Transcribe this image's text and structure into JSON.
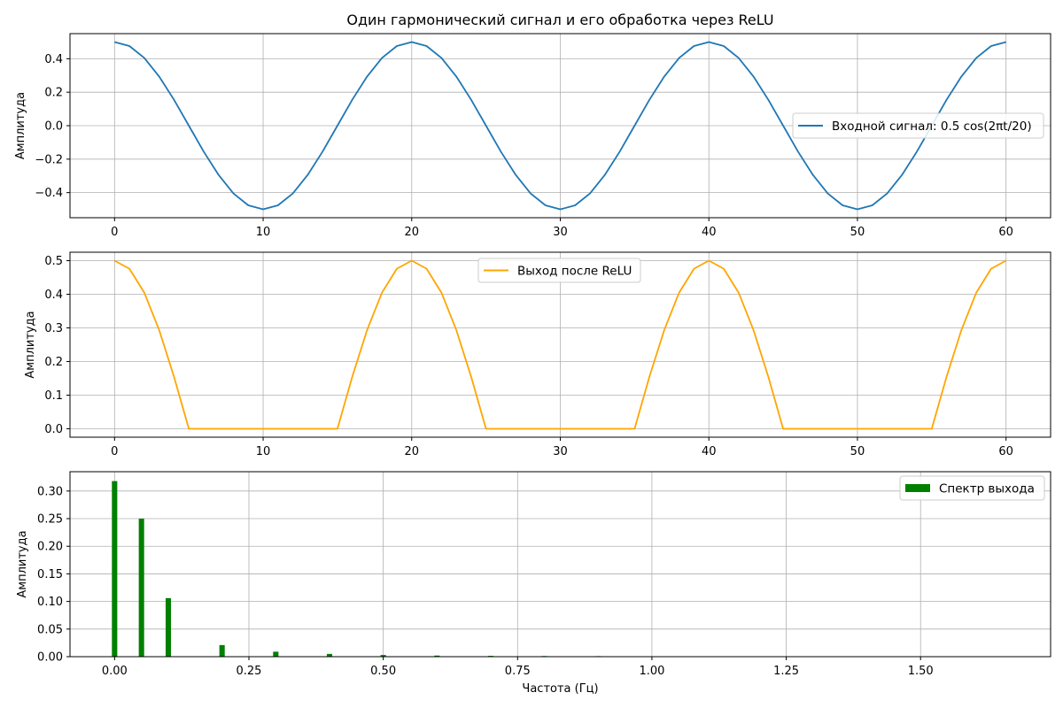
{
  "chart_data": [
    {
      "type": "line",
      "title": "Один гармонический сигнал и его обработка через ReLU",
      "xlabel": "",
      "ylabel": "Амплитуда",
      "xlim": [
        -3,
        63
      ],
      "ylim": [
        -0.55,
        0.55
      ],
      "xticks": [
        0,
        10,
        20,
        30,
        40,
        50,
        60
      ],
      "xtick_labels": [
        "0",
        "10",
        "20",
        "30",
        "40",
        "50",
        "60"
      ],
      "yticks": [
        -0.4,
        -0.2,
        0.0,
        0.2,
        0.4
      ],
      "ytick_labels": [
        "−0.4",
        "−0.2",
        "0.0",
        "0.2",
        "0.4"
      ],
      "grid": true,
      "legend_position": "center-right",
      "series": [
        {
          "name": "Входной сигнал: 0.5 cos(2πt/20)",
          "color": "#1f77b4",
          "x": [
            0,
            1,
            2,
            3,
            4,
            5,
            6,
            7,
            8,
            9,
            10,
            11,
            12,
            13,
            14,
            15,
            16,
            17,
            18,
            19,
            20,
            21,
            22,
            23,
            24,
            25,
            26,
            27,
            28,
            29,
            30,
            31,
            32,
            33,
            34,
            35,
            36,
            37,
            38,
            39,
            40,
            41,
            42,
            43,
            44,
            45,
            46,
            47,
            48,
            49,
            50,
            51,
            52,
            53,
            54,
            55,
            56,
            57,
            58,
            59,
            60
          ],
          "y": [
            0.5,
            0.476,
            0.405,
            0.294,
            0.155,
            0.0,
            -0.155,
            -0.294,
            -0.405,
            -0.476,
            -0.5,
            -0.476,
            -0.405,
            -0.294,
            -0.155,
            0.0,
            0.155,
            0.294,
            0.405,
            0.476,
            0.5,
            0.476,
            0.405,
            0.294,
            0.155,
            0.0,
            -0.155,
            -0.294,
            -0.405,
            -0.476,
            -0.5,
            -0.476,
            -0.405,
            -0.294,
            -0.155,
            0.0,
            0.155,
            0.294,
            0.405,
            0.476,
            0.5,
            0.476,
            0.405,
            0.294,
            0.155,
            0.0,
            -0.155,
            -0.294,
            -0.405,
            -0.476,
            -0.5,
            -0.476,
            -0.405,
            -0.294,
            -0.155,
            0.0,
            0.155,
            0.294,
            0.405,
            0.476,
            0.5
          ]
        }
      ]
    },
    {
      "type": "line",
      "title": "",
      "xlabel": "",
      "ylabel": "Амплитуда",
      "xlim": [
        -3,
        63
      ],
      "ylim": [
        -0.025,
        0.525
      ],
      "xticks": [
        0,
        10,
        20,
        30,
        40,
        50,
        60
      ],
      "xtick_labels": [
        "0",
        "10",
        "20",
        "30",
        "40",
        "50",
        "60"
      ],
      "yticks": [
        0.0,
        0.1,
        0.2,
        0.3,
        0.4,
        0.5
      ],
      "ytick_labels": [
        "0.0",
        "0.1",
        "0.2",
        "0.3",
        "0.4",
        "0.5"
      ],
      "grid": true,
      "legend_position": "upper-center",
      "series": [
        {
          "name": "Выход после ReLU",
          "color": "#ffa500",
          "x": [
            0,
            1,
            2,
            3,
            4,
            5,
            6,
            7,
            8,
            9,
            10,
            11,
            12,
            13,
            14,
            15,
            16,
            17,
            18,
            19,
            20,
            21,
            22,
            23,
            24,
            25,
            26,
            27,
            28,
            29,
            30,
            31,
            32,
            33,
            34,
            35,
            36,
            37,
            38,
            39,
            40,
            41,
            42,
            43,
            44,
            45,
            46,
            47,
            48,
            49,
            50,
            51,
            52,
            53,
            54,
            55,
            56,
            57,
            58,
            59,
            60
          ],
          "y": [
            0.5,
            0.476,
            0.405,
            0.294,
            0.155,
            0.0,
            0.0,
            0.0,
            0.0,
            0.0,
            0.0,
            0.0,
            0.0,
            0.0,
            0.0,
            0.0,
            0.155,
            0.294,
            0.405,
            0.476,
            0.5,
            0.476,
            0.405,
            0.294,
            0.155,
            0.0,
            0.0,
            0.0,
            0.0,
            0.0,
            0.0,
            0.0,
            0.0,
            0.0,
            0.0,
            0.0,
            0.155,
            0.294,
            0.405,
            0.476,
            0.5,
            0.476,
            0.405,
            0.294,
            0.155,
            0.0,
            0.0,
            0.0,
            0.0,
            0.0,
            0.0,
            0.0,
            0.0,
            0.0,
            0.0,
            0.0,
            0.155,
            0.294,
            0.405,
            0.476,
            0.5
          ]
        }
      ]
    },
    {
      "type": "bar",
      "title": "",
      "xlabel": "Частота (Гц)",
      "ylabel": "Амплитуда",
      "xlim": [
        -0.083,
        1.742
      ],
      "ylim": [
        0,
        0.335
      ],
      "xticks": [
        0.0,
        0.25,
        0.5,
        0.75,
        1.0,
        1.25,
        1.5
      ],
      "xtick_labels": [
        "0.00",
        "0.25",
        "0.50",
        "0.75",
        "1.00",
        "1.25",
        "1.50"
      ],
      "yticks": [
        0.0,
        0.05,
        0.1,
        0.15,
        0.2,
        0.25,
        0.3
      ],
      "ytick_labels": [
        "0.00",
        "0.05",
        "0.10",
        "0.15",
        "0.20",
        "0.25",
        "0.30"
      ],
      "grid": true,
      "legend_position": "upper-right",
      "bar_width": 0.01,
      "series": [
        {
          "name": "Спектр выхода",
          "color": "#008000",
          "x": [
            0.0,
            0.05,
            0.1,
            0.2,
            0.3,
            0.4,
            0.5,
            0.6,
            0.7,
            0.8,
            0.9,
            1.0,
            1.1,
            1.2,
            1.3,
            1.4
          ],
          "values": [
            0.318,
            0.25,
            0.106,
            0.021,
            0.009,
            0.005,
            0.003,
            0.002,
            0.0015,
            0.0012,
            0.001,
            0.0008,
            0.0007,
            0.0006,
            0.0005,
            0.0004
          ]
        }
      ]
    }
  ]
}
